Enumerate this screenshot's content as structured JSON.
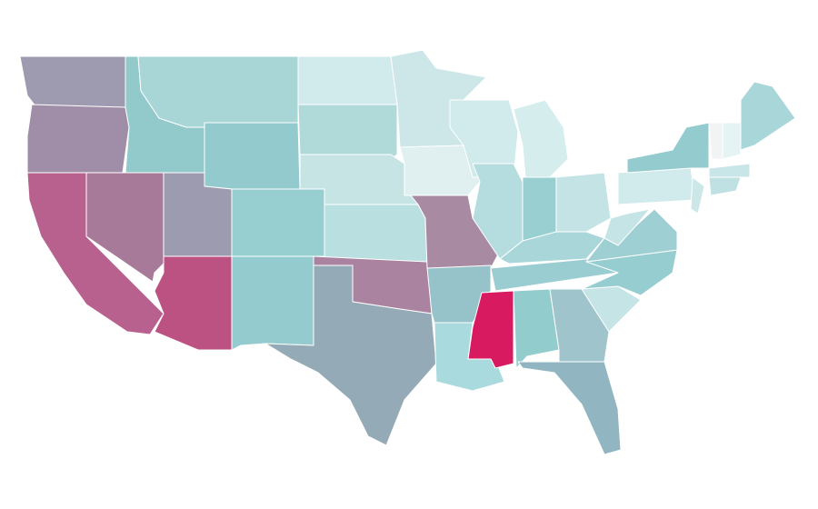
{
  "fills": [
    "#9e9bb0",
    "#a08ea8",
    "#b8618f",
    "#a87a9a",
    "#92cacb",
    "#a8d5d6",
    "#93cace",
    "#9c9bb0",
    "#bb5282",
    "#97ced0",
    "#94cbce",
    "#d1eaeb",
    "#b0d9da",
    "#c7e4e5",
    "#badfe0",
    "#a983a0",
    "#94aab6",
    "#cde7e8",
    "#e0f0f1",
    "#a98aa3",
    "#96c3c9",
    "#a9dadd",
    "#d1eaeb",
    "#b5dde0",
    "#d6edee",
    "#9acfd2",
    "#c3e3e5",
    "#a9d6d9",
    "#99cdd2",
    "#d81b60",
    "#92cccd",
    "#a0c4cb",
    "#92b6c1",
    "#c5e4e6",
    "#95cdd1",
    "#9ecfd3",
    "#c5e4e5",
    "#d1eaeb",
    "#94cbcf",
    "#cbe7e8",
    "#f0f4f5",
    "#e6f3f4",
    "#a8d6d9",
    "#c8e5e7",
    "#bfe1e3"
  ]
}
